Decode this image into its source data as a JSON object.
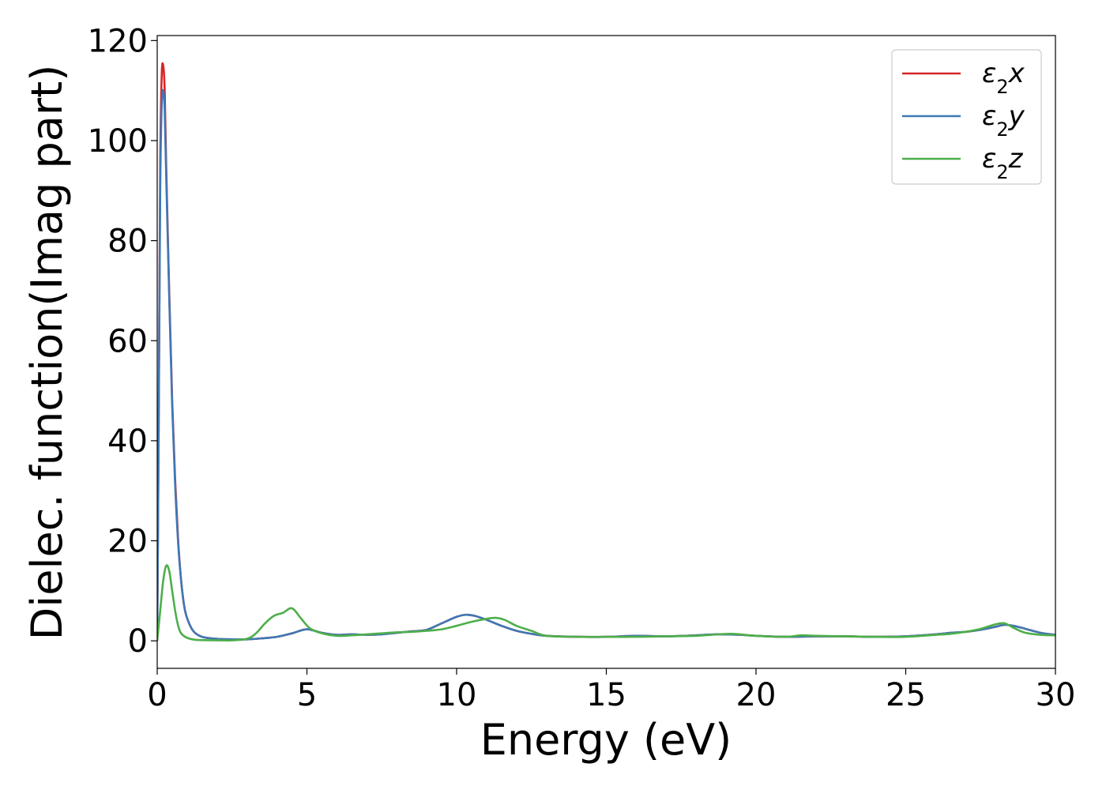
{
  "chart_data": {
    "type": "line",
    "title": "",
    "xlabel": "Energy (eV)",
    "ylabel": "Dielec. function(Imag part)",
    "xlim": [
      0,
      30
    ],
    "ylim": [
      -5.5,
      121
    ],
    "xticks": [
      0,
      5,
      10,
      15,
      20,
      25,
      30
    ],
    "yticks": [
      0,
      20,
      40,
      60,
      80,
      100,
      120
    ],
    "grid": false,
    "legend_position": "top-right",
    "series": [
      {
        "name": "ε2x",
        "legend_base": "ε",
        "legend_sub": "2",
        "legend_suffix": "x",
        "color": "#d62728",
        "x": [
          0,
          0.05,
          0.1,
          0.15,
          0.2,
          0.25,
          0.3,
          0.4,
          0.5,
          0.6,
          0.7,
          0.8,
          0.9,
          1.0,
          1.2,
          1.5,
          2.0,
          2.5,
          3.0,
          3.5,
          4.0,
          4.5,
          5.0,
          5.5,
          6.0,
          6.5,
          7.0,
          7.5,
          8.0,
          8.5,
          9.0,
          9.5,
          10.0,
          10.3,
          10.6,
          11.0,
          11.5,
          12.0,
          12.5,
          13.0,
          14.0,
          15.0,
          16.0,
          17.0,
          18.0,
          18.7,
          19.5,
          20.0,
          21.0,
          22.0,
          23.0,
          24.0,
          25.0,
          26.0,
          26.5,
          27.0,
          27.5,
          28.0,
          28.3,
          28.6,
          29.0,
          29.5,
          30.0
        ],
        "y": [
          0,
          45,
          95,
          113,
          115,
          110,
          95,
          70,
          48,
          32,
          20,
          12,
          7,
          4.5,
          2,
          0.8,
          0.4,
          0.3,
          0.3,
          0.5,
          0.8,
          1.5,
          2.3,
          1.6,
          1.2,
          1.3,
          1.2,
          1.3,
          1.6,
          1.9,
          2.2,
          3.5,
          4.8,
          5.2,
          5.0,
          4.2,
          3.0,
          2.0,
          1.4,
          1.0,
          0.8,
          0.8,
          1.0,
          0.9,
          1.1,
          1.3,
          1.2,
          1.0,
          0.8,
          0.9,
          0.9,
          0.8,
          0.9,
          1.3,
          1.6,
          1.8,
          2.2,
          2.8,
          3.2,
          3.0,
          2.4,
          1.6,
          1.2
        ]
      },
      {
        "name": "ε2y",
        "legend_base": "ε",
        "legend_sub": "2",
        "legend_suffix": "y",
        "color": "#3e78b5",
        "x": [
          0,
          0.05,
          0.1,
          0.15,
          0.2,
          0.25,
          0.3,
          0.4,
          0.5,
          0.6,
          0.7,
          0.8,
          0.9,
          1.0,
          1.2,
          1.5,
          2.0,
          2.5,
          3.0,
          3.5,
          4.0,
          4.5,
          5.0,
          5.5,
          6.0,
          6.5,
          7.0,
          7.5,
          8.0,
          8.5,
          9.0,
          9.5,
          10.0,
          10.3,
          10.6,
          11.0,
          11.5,
          12.0,
          12.5,
          13.0,
          14.0,
          15.0,
          16.0,
          17.0,
          18.0,
          18.7,
          19.5,
          20.0,
          21.0,
          22.0,
          23.0,
          24.0,
          25.0,
          26.0,
          26.5,
          27.0,
          27.5,
          28.0,
          28.3,
          28.6,
          29.0,
          29.5,
          30.0
        ],
        "y": [
          0,
          43,
          90,
          107,
          110,
          106,
          93,
          69,
          47,
          31,
          19.5,
          12,
          7,
          4.5,
          2,
          0.8,
          0.4,
          0.3,
          0.3,
          0.5,
          0.8,
          1.5,
          2.3,
          1.6,
          1.2,
          1.3,
          1.2,
          1.3,
          1.6,
          1.9,
          2.2,
          3.5,
          4.8,
          5.2,
          5.0,
          4.2,
          3.0,
          2.0,
          1.4,
          1.0,
          0.8,
          0.8,
          1.0,
          0.9,
          1.1,
          1.3,
          1.2,
          1.0,
          0.8,
          0.9,
          0.9,
          0.8,
          0.9,
          1.3,
          1.6,
          1.8,
          2.2,
          2.8,
          3.2,
          3.0,
          2.4,
          1.6,
          1.2
        ]
      },
      {
        "name": "ε2z",
        "legend_base": "ε",
        "legend_sub": "2",
        "legend_suffix": "z",
        "color": "#4daf4a",
        "x": [
          0,
          0.1,
          0.2,
          0.3,
          0.4,
          0.5,
          0.6,
          0.7,
          0.8,
          1.0,
          1.3,
          2.0,
          2.5,
          3.0,
          3.3,
          3.6,
          3.9,
          4.2,
          4.5,
          4.8,
          5.1,
          5.5,
          6.0,
          6.5,
          7.0,
          7.5,
          8.0,
          8.5,
          9.0,
          9.5,
          10.0,
          10.5,
          11.0,
          11.3,
          11.6,
          12.0,
          12.5,
          13.0,
          14.0,
          15.0,
          16.0,
          17.0,
          18.0,
          18.5,
          19.2,
          20.0,
          21.0,
          21.5,
          22.0,
          23.0,
          24.0,
          25.0,
          26.0,
          26.5,
          27.0,
          27.5,
          28.0,
          28.3,
          28.6,
          29.0,
          29.5,
          30.0
        ],
        "y": [
          0,
          6,
          12,
          15,
          14,
          10,
          6,
          3,
          1.5,
          0.6,
          0.2,
          0.1,
          0.1,
          0.4,
          1.5,
          3.5,
          5.0,
          5.6,
          6.5,
          4.5,
          2.5,
          1.5,
          1.0,
          1.1,
          1.3,
          1.5,
          1.7,
          1.8,
          2.0,
          2.3,
          3.0,
          3.8,
          4.4,
          4.6,
          4.2,
          3.0,
          2.0,
          1.0,
          0.8,
          0.8,
          0.8,
          0.9,
          1.0,
          1.2,
          1.4,
          1.0,
          0.8,
          1.1,
          1.0,
          0.9,
          0.8,
          0.8,
          1.2,
          1.4,
          1.8,
          2.4,
          3.3,
          3.5,
          2.6,
          1.6,
          1.2,
          1.1
        ]
      }
    ]
  }
}
